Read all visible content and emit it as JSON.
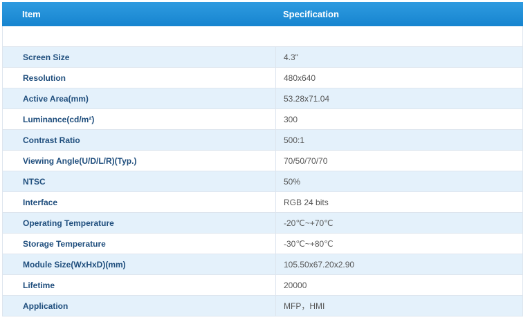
{
  "table": {
    "header": [
      "Item",
      "Specification"
    ],
    "rows": [
      [
        "Screen Size",
        "4.3\""
      ],
      [
        "Resolution",
        "480x640"
      ],
      [
        "Active Area(mm)",
        "53.28x71.04"
      ],
      [
        "Luminance(cd/m²)",
        "300"
      ],
      [
        "Contrast Ratio",
        "500:1"
      ],
      [
        "Viewing Angle(U/D/L/R)(Typ.)",
        "70/50/70/70"
      ],
      [
        "NTSC",
        "50%"
      ],
      [
        "Interface",
        "RGB 24 bits"
      ],
      [
        "Operating Temperature",
        "-20℃~+70℃"
      ],
      [
        "Storage Temperature",
        "-30℃~+80℃"
      ],
      [
        "Module Size(WxHxD)(mm)",
        "105.50x67.20x2.90"
      ],
      [
        "Lifetime",
        "20000"
      ],
      [
        "Application",
        "MFP，HMI"
      ]
    ]
  }
}
